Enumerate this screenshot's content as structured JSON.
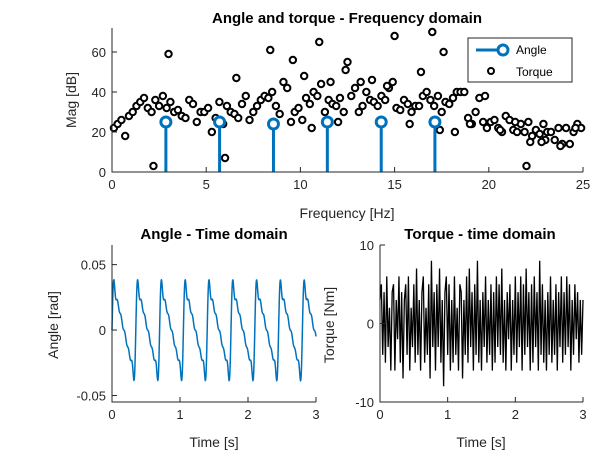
{
  "chart_data": [
    {
      "type": "scatter",
      "title": "Angle and torque - Frequency domain",
      "xlabel": "Frequency [Hz]",
      "ylabel": "Mag [dB]",
      "xlim": [
        0,
        25
      ],
      "ylim": [
        0,
        72
      ],
      "xticks": [
        "0",
        "5",
        "10",
        "15",
        "20",
        "25"
      ],
      "yticks": [
        "0",
        "20",
        "40",
        "60"
      ],
      "grid": false,
      "legend_position": "top-right",
      "series": [
        {
          "name": "Angle",
          "style": "stem",
          "color": "#0072BD",
          "x": [
            2.86,
            5.71,
            8.57,
            11.43,
            14.29,
            17.14
          ],
          "y": [
            25,
            25,
            24,
            25,
            25,
            25
          ]
        },
        {
          "name": "Torque",
          "style": "markers",
          "color": "#000000",
          "x": [
            0.1,
            0.3,
            0.5,
            0.7,
            0.9,
            1.1,
            1.3,
            1.5,
            1.7,
            1.9,
            2.1,
            2.3,
            2.5,
            2.7,
            2.9,
            3.1,
            3.3,
            3.5,
            3.7,
            3.9,
            4.1,
            4.3,
            4.5,
            4.7,
            4.9,
            5.1,
            5.3,
            5.5,
            5.7,
            5.9,
            6.1,
            6.3,
            6.5,
            6.7,
            6.9,
            7.1,
            7.3,
            7.5,
            7.7,
            7.9,
            8.1,
            8.3,
            8.5,
            8.7,
            8.9,
            9.1,
            9.3,
            9.5,
            9.7,
            9.9,
            10.1,
            10.3,
            10.5,
            10.7,
            10.9,
            11.1,
            11.3,
            11.5,
            11.7,
            11.9,
            12.1,
            12.3,
            12.5,
            12.7,
            12.9,
            13.1,
            13.3,
            13.5,
            13.7,
            13.9,
            14.1,
            14.3,
            14.5,
            14.7,
            14.9,
            15.1,
            15.3,
            15.5,
            15.7,
            15.9,
            16.1,
            16.3,
            16.5,
            16.7,
            16.9,
            17.1,
            17.3,
            17.5,
            17.7,
            17.9,
            18.1,
            18.3,
            18.5,
            18.7,
            18.9,
            19.1,
            19.3,
            19.5,
            19.7,
            19.9,
            20.1,
            20.3,
            20.5,
            20.7,
            20.9,
            21.1,
            21.3,
            21.5,
            21.7,
            21.9,
            22.1,
            22.3,
            22.5,
            22.7,
            22.9,
            23.1,
            23.3,
            23.5,
            23.7,
            23.9,
            24.1,
            24.3,
            24.5,
            24.7,
            24.9,
            3.0,
            6.6,
            8.4,
            9.6,
            10.2,
            11.0,
            11.6,
            12.4,
            13.2,
            13.8,
            14.6,
            15.0,
            16.4,
            17.0,
            17.6,
            18.2,
            19.0,
            19.8,
            20.6,
            21.4,
            22.2,
            23.0,
            23.8,
            24.6,
            2.2,
            6.0,
            10.6,
            12.0,
            15.8,
            17.4,
            22.0,
            22.8
          ],
          "y": [
            22,
            24,
            26,
            18,
            28,
            30,
            33,
            35,
            37,
            32,
            30,
            36,
            33,
            38,
            32,
            35,
            30,
            31,
            28,
            27,
            36,
            34,
            25,
            30,
            30,
            32,
            20,
            27,
            35,
            24,
            33,
            30,
            29,
            27,
            34,
            38,
            26,
            30,
            33,
            36,
            38,
            37,
            40,
            33,
            29,
            45,
            42,
            25,
            30,
            32,
            26,
            37,
            34,
            40,
            38,
            44,
            30,
            36,
            34,
            33,
            37,
            30,
            55,
            38,
            42,
            30,
            33,
            40,
            36,
            35,
            33,
            38,
            36,
            42,
            45,
            32,
            31,
            36,
            34,
            30,
            33,
            33,
            38,
            40,
            36,
            33,
            38,
            30,
            35,
            34,
            37,
            40,
            40,
            40,
            27,
            24,
            30,
            37,
            25,
            22,
            25,
            26,
            22,
            20,
            28,
            26,
            21,
            20,
            24,
            20,
            25,
            18,
            21,
            19,
            24,
            20,
            20,
            16,
            22,
            14,
            22,
            14,
            20,
            24,
            22,
            59,
            47,
            61,
            56,
            48,
            65,
            45,
            51,
            45,
            46,
            43,
            68,
            50,
            70,
            60,
            20,
            24,
            38,
            21,
            25,
            15,
            16,
            13,
            22,
            3,
            7,
            22,
            25,
            24,
            21,
            3,
            15
          ],
          "marker": "o"
        }
      ]
    },
    {
      "type": "line",
      "title": "Angle - Time domain",
      "xlabel": "Time [s]",
      "ylabel": "Angle [rad]",
      "xlim": [
        0,
        3
      ],
      "ylim": [
        -0.055,
        0.065
      ],
      "xticks": [
        "0",
        "1",
        "2",
        "3"
      ],
      "yticks": [
        "-0.05",
        "0",
        "0.05"
      ],
      "grid": false,
      "series": [
        {
          "color": "#0072BD",
          "components": [
            {
              "amplitude": 0.025,
              "frequency_hz": 2.857
            },
            {
              "amplitude": 0.012,
              "frequency_hz": 5.714
            },
            {
              "amplitude": 0.008,
              "frequency_hz": 8.571
            },
            {
              "amplitude": 0.006,
              "frequency_hz": 11.43
            },
            {
              "amplitude": 0.004,
              "frequency_hz": 14.29
            },
            {
              "amplitude": 0.003,
              "frequency_hz": 17.14
            }
          ]
        }
      ]
    },
    {
      "type": "line",
      "title": "Torque - time domain",
      "xlabel": "Time [s]",
      "ylabel": "Torque [Nm]",
      "xlim": [
        0,
        3
      ],
      "ylim": [
        -10,
        10
      ],
      "xticks": [
        "0",
        "1",
        "2",
        "3"
      ],
      "yticks": [
        "-10",
        "0",
        "10"
      ],
      "grid": false,
      "series": [
        {
          "color": "#000000",
          "x": [
            0.0,
            0.02,
            0.04,
            0.06,
            0.08,
            0.1,
            0.12,
            0.14,
            0.16,
            0.18,
            0.2,
            0.22,
            0.24,
            0.26,
            0.28,
            0.3,
            0.32,
            0.34,
            0.36,
            0.38,
            0.4,
            0.42,
            0.44,
            0.46,
            0.48,
            0.5,
            0.52,
            0.54,
            0.56,
            0.58,
            0.6,
            0.62,
            0.64,
            0.66,
            0.68,
            0.7,
            0.72,
            0.74,
            0.76,
            0.78,
            0.8,
            0.82,
            0.84,
            0.86,
            0.88,
            0.9,
            0.92,
            0.94,
            0.96,
            0.98,
            1.0,
            1.02,
            1.04,
            1.06,
            1.08,
            1.1,
            1.12,
            1.14,
            1.16,
            1.18,
            1.2,
            1.22,
            1.24,
            1.26,
            1.28,
            1.3,
            1.32,
            1.34,
            1.36,
            1.38,
            1.4,
            1.42,
            1.44,
            1.46,
            1.48,
            1.5,
            1.52,
            1.54,
            1.56,
            1.58,
            1.6,
            1.62,
            1.64,
            1.66,
            1.68,
            1.7,
            1.72,
            1.74,
            1.76,
            1.78,
            1.8,
            1.82,
            1.84,
            1.86,
            1.88,
            1.9,
            1.92,
            1.94,
            1.96,
            1.98,
            2.0,
            2.02,
            2.04,
            2.06,
            2.08,
            2.1,
            2.12,
            2.14,
            2.16,
            2.18,
            2.2,
            2.22,
            2.24,
            2.26,
            2.28,
            2.3,
            2.32,
            2.34,
            2.36,
            2.38,
            2.4,
            2.42,
            2.44,
            2.46,
            2.48,
            2.5,
            2.52,
            2.54,
            2.56,
            2.58,
            2.6,
            2.62,
            2.64,
            2.66,
            2.68,
            2.7,
            2.72,
            2.74,
            2.76,
            2.78,
            2.8,
            2.82,
            2.84,
            2.86,
            2.88,
            2.9,
            2.92,
            2.94,
            2.96,
            2.98,
            3.0
          ],
          "y": [
            3,
            5,
            -4,
            4,
            -5,
            6,
            -3,
            2,
            -6,
            4,
            5,
            -6,
            3,
            -2,
            6,
            -5,
            4,
            -7,
            3,
            5,
            -4,
            6,
            -6,
            2,
            -3,
            5,
            -5,
            7,
            -4,
            3,
            -6,
            4,
            6,
            -5,
            2,
            -4,
            5,
            -7,
            8,
            -3,
            4,
            -6,
            5,
            -3,
            7,
            -5,
            3,
            -8,
            4,
            6,
            -4,
            5,
            -6,
            3,
            -5,
            6,
            -4,
            2,
            -6,
            5,
            4,
            -7,
            3,
            -4,
            6,
            -5,
            7,
            -3,
            4,
            -6,
            5,
            -4,
            8,
            -5,
            3,
            -6,
            4,
            -3,
            6,
            -5,
            3,
            -4,
            5,
            -6,
            4,
            -5,
            6,
            -3,
            5,
            -4,
            7,
            -5,
            3,
            -6,
            4,
            -2,
            5,
            -6,
            3,
            -4,
            6,
            -5,
            4,
            -3,
            6,
            -6,
            5,
            -4,
            7,
            -3,
            4,
            -6,
            5,
            -5,
            6,
            -3,
            4,
            -6,
            8,
            -4,
            5,
            -5,
            3,
            -6,
            4,
            -4,
            6,
            -5,
            3,
            -4,
            5,
            -6,
            4,
            -3,
            6,
            -5,
            4,
            -4,
            6,
            -3,
            5,
            -6,
            3,
            -4,
            5,
            -2,
            4,
            -5,
            3,
            -4,
            3
          ]
        }
      ]
    }
  ]
}
